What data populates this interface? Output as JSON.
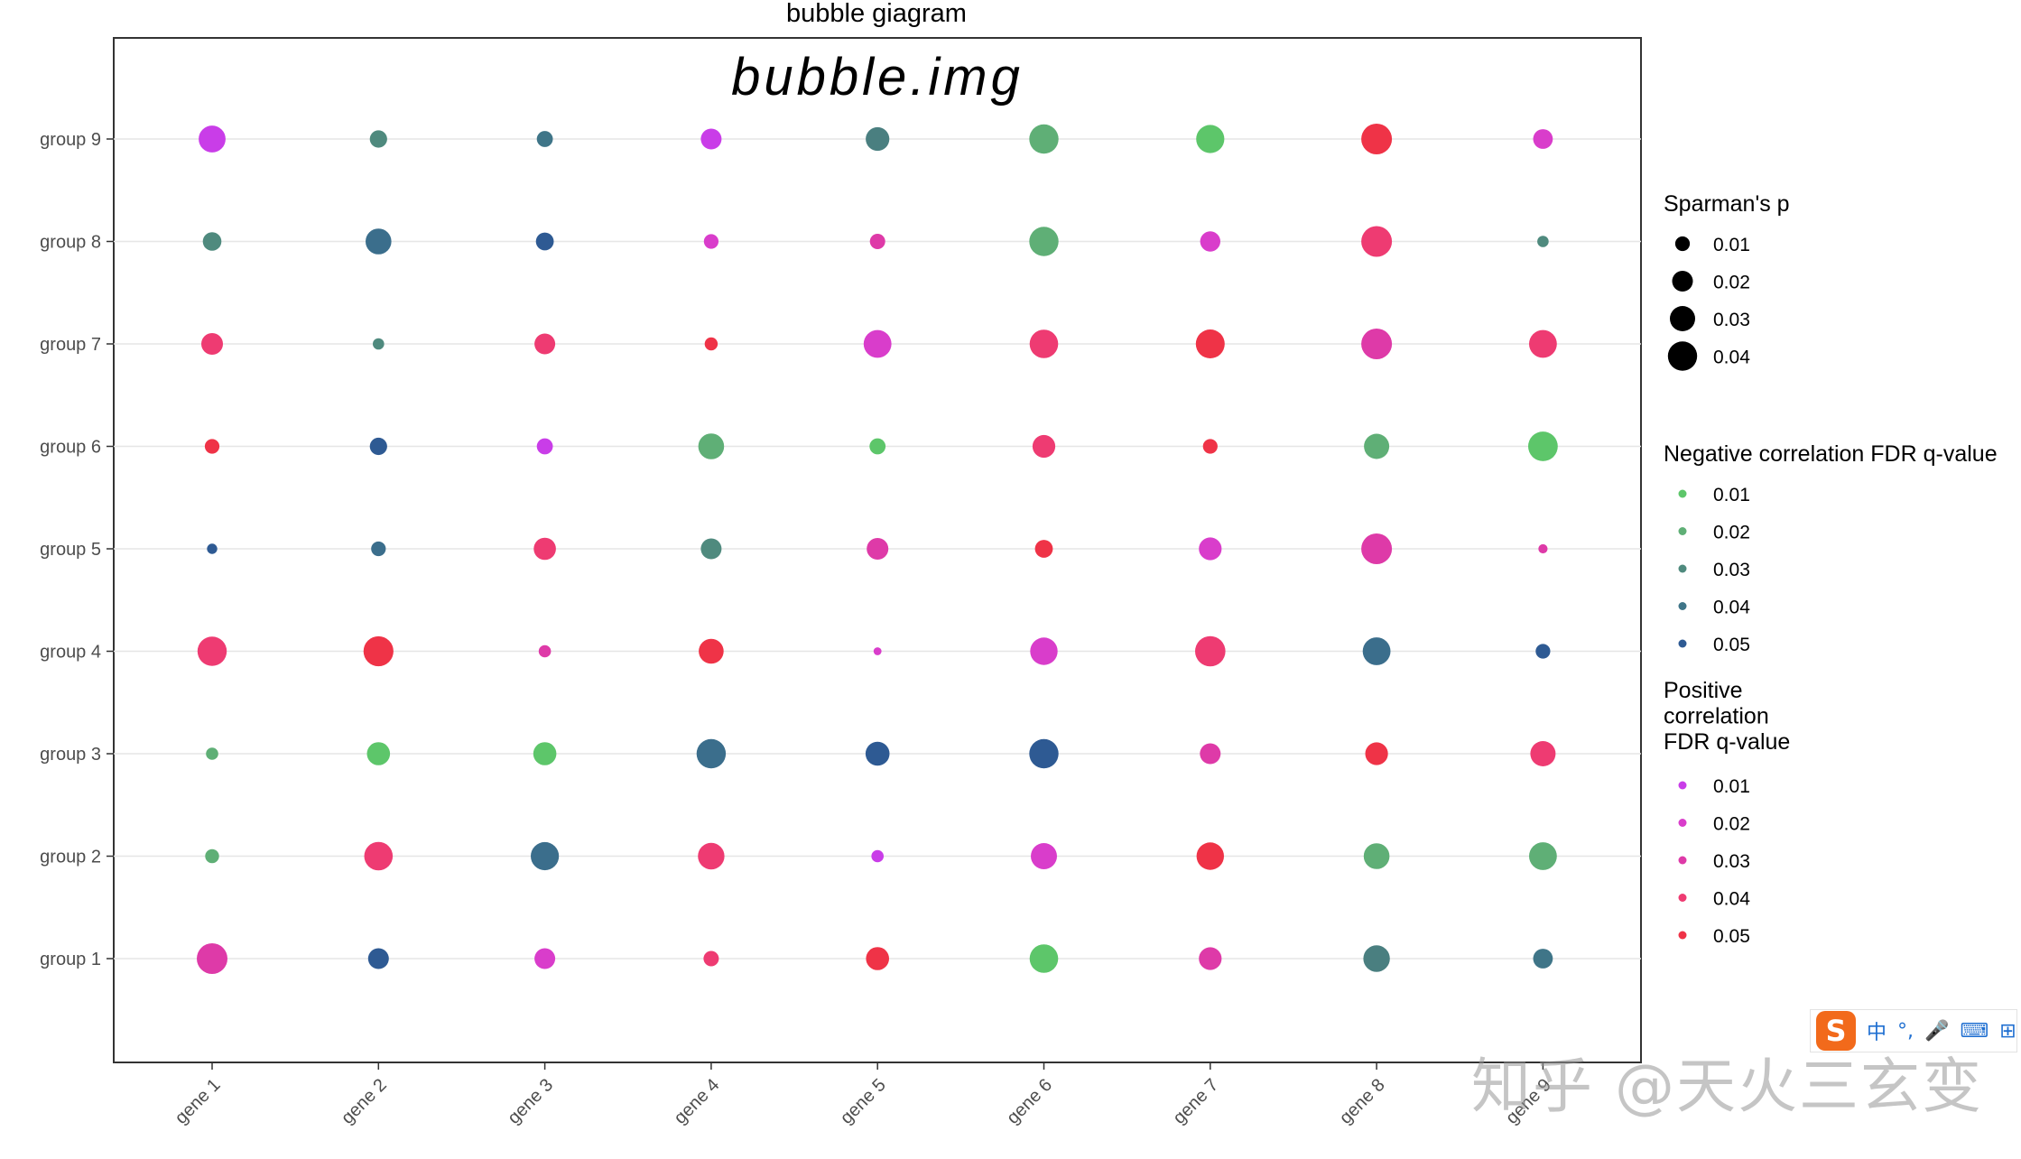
{
  "chart_data": {
    "type": "scatter",
    "title": "bubble giagram",
    "inner_title": "bubble.img",
    "categories_x": [
      "gene 1",
      "gene 2",
      "gene 3",
      "gene 4",
      "gene 5",
      "gene 6",
      "gene 7",
      "gene 8",
      "gene 9"
    ],
    "categories_y": [
      "group 1",
      "group 2",
      "group 3",
      "group 4",
      "group 5",
      "group 6",
      "group 7",
      "group 8",
      "group 9"
    ],
    "points": [
      {
        "x": "gene 1",
        "y": "group 9",
        "size": 0.034,
        "color": "#c93de8"
      },
      {
        "x": "gene 2",
        "y": "group 9",
        "size": 0.014,
        "color": "#4f8a7e"
      },
      {
        "x": "gene 3",
        "y": "group 9",
        "size": 0.012,
        "color": "#3f7588"
      },
      {
        "x": "gene 4",
        "y": "group 9",
        "size": 0.02,
        "color": "#c93de8"
      },
      {
        "x": "gene 5",
        "y": "group 9",
        "size": 0.026,
        "color": "#4a7f80"
      },
      {
        "x": "gene 6",
        "y": "group 9",
        "size": 0.04,
        "color": "#5faf76"
      },
      {
        "x": "gene 7",
        "y": "group 9",
        "size": 0.037,
        "color": "#5dc66a"
      },
      {
        "x": "gene 8",
        "y": "group 9",
        "size": 0.044,
        "color": "#ef3347"
      },
      {
        "x": "gene 9",
        "y": "group 9",
        "size": 0.018,
        "color": "#d93dcb"
      },
      {
        "x": "gene 1",
        "y": "group 8",
        "size": 0.016,
        "color": "#4f8a7e"
      },
      {
        "x": "gene 2",
        "y": "group 8",
        "size": 0.031,
        "color": "#3b6e8c"
      },
      {
        "x": "gene 3",
        "y": "group 8",
        "size": 0.015,
        "color": "#2e5a93"
      },
      {
        "x": "gene 4",
        "y": "group 8",
        "size": 0.01,
        "color": "#d93dcb"
      },
      {
        "x": "gene 5",
        "y": "group 8",
        "size": 0.011,
        "color": "#de3aa8"
      },
      {
        "x": "gene 6",
        "y": "group 8",
        "size": 0.04,
        "color": "#5faf76"
      },
      {
        "x": "gene 7",
        "y": "group 8",
        "size": 0.019,
        "color": "#d93dcb"
      },
      {
        "x": "gene 8",
        "y": "group 8",
        "size": 0.044,
        "color": "#ee3b72"
      },
      {
        "x": "gene 9",
        "y": "group 8",
        "size": 0.006,
        "color": "#4f8a7e"
      },
      {
        "x": "gene 1",
        "y": "group 7",
        "size": 0.022,
        "color": "#ee3b72"
      },
      {
        "x": "gene 2",
        "y": "group 7",
        "size": 0.006,
        "color": "#4f8a7e"
      },
      {
        "x": "gene 3",
        "y": "group 7",
        "size": 0.02,
        "color": "#ee3b72"
      },
      {
        "x": "gene 4",
        "y": "group 7",
        "size": 0.008,
        "color": "#ef3347"
      },
      {
        "x": "gene 5",
        "y": "group 7",
        "size": 0.036,
        "color": "#d93dcb"
      },
      {
        "x": "gene 6",
        "y": "group 7",
        "size": 0.038,
        "color": "#ee3b72"
      },
      {
        "x": "gene 7",
        "y": "group 7",
        "size": 0.039,
        "color": "#ef3347"
      },
      {
        "x": "gene 8",
        "y": "group 7",
        "size": 0.044,
        "color": "#de3aa8"
      },
      {
        "x": "gene 9",
        "y": "group 7",
        "size": 0.036,
        "color": "#ee3b72"
      },
      {
        "x": "gene 1",
        "y": "group 6",
        "size": 0.01,
        "color": "#ef3347"
      },
      {
        "x": "gene 2",
        "y": "group 6",
        "size": 0.014,
        "color": "#2e5a93"
      },
      {
        "x": "gene 3",
        "y": "group 6",
        "size": 0.012,
        "color": "#c93de8"
      },
      {
        "x": "gene 4",
        "y": "group 6",
        "size": 0.031,
        "color": "#5faf76"
      },
      {
        "x": "gene 5",
        "y": "group 6",
        "size": 0.012,
        "color": "#5dc66a"
      },
      {
        "x": "gene 6",
        "y": "group 6",
        "size": 0.024,
        "color": "#ee3b72"
      },
      {
        "x": "gene 7",
        "y": "group 6",
        "size": 0.01,
        "color": "#ef3347"
      },
      {
        "x": "gene 8",
        "y": "group 6",
        "size": 0.03,
        "color": "#5faf76"
      },
      {
        "x": "gene 9",
        "y": "group 6",
        "size": 0.041,
        "color": "#5dc66a"
      },
      {
        "x": "gene 1",
        "y": "group 5",
        "size": 0.005,
        "color": "#2e5a93"
      },
      {
        "x": "gene 2",
        "y": "group 5",
        "size": 0.01,
        "color": "#3b6e8c"
      },
      {
        "x": "gene 3",
        "y": "group 5",
        "size": 0.023,
        "color": "#ee3b72"
      },
      {
        "x": "gene 4",
        "y": "group 5",
        "size": 0.02,
        "color": "#4f8a7e"
      },
      {
        "x": "gene 5",
        "y": "group 5",
        "size": 0.022,
        "color": "#de3aa8"
      },
      {
        "x": "gene 6",
        "y": "group 5",
        "size": 0.015,
        "color": "#ef3347"
      },
      {
        "x": "gene 7",
        "y": "group 5",
        "size": 0.024,
        "color": "#d93dcb"
      },
      {
        "x": "gene 8",
        "y": "group 5",
        "size": 0.044,
        "color": "#de3aa8"
      },
      {
        "x": "gene 9",
        "y": "group 5",
        "size": 0.004,
        "color": "#de3aa8"
      },
      {
        "x": "gene 1",
        "y": "group 4",
        "size": 0.04,
        "color": "#ee3b72"
      },
      {
        "x": "gene 2",
        "y": "group 4",
        "size": 0.042,
        "color": "#ef3347"
      },
      {
        "x": "gene 3",
        "y": "group 4",
        "size": 0.007,
        "color": "#de3aa8"
      },
      {
        "x": "gene 4",
        "y": "group 4",
        "size": 0.029,
        "color": "#ef3347"
      },
      {
        "x": "gene 5",
        "y": "group 4",
        "size": 0.003,
        "color": "#d93dcb"
      },
      {
        "x": "gene 6",
        "y": "group 4",
        "size": 0.035,
        "color": "#d93dcb"
      },
      {
        "x": "gene 7",
        "y": "group 4",
        "size": 0.043,
        "color": "#ee3b72"
      },
      {
        "x": "gene 8",
        "y": "group 4",
        "size": 0.036,
        "color": "#3b6e8c"
      },
      {
        "x": "gene 9",
        "y": "group 4",
        "size": 0.01,
        "color": "#2e5a93"
      },
      {
        "x": "gene 1",
        "y": "group 3",
        "size": 0.007,
        "color": "#5faf76"
      },
      {
        "x": "gene 2",
        "y": "group 3",
        "size": 0.025,
        "color": "#5dc66a"
      },
      {
        "x": "gene 3",
        "y": "group 3",
        "size": 0.025,
        "color": "#5dc66a"
      },
      {
        "x": "gene 4",
        "y": "group 3",
        "size": 0.04,
        "color": "#3b6e8c"
      },
      {
        "x": "gene 5",
        "y": "group 3",
        "size": 0.027,
        "color": "#2e5a93"
      },
      {
        "x": "gene 6",
        "y": "group 3",
        "size": 0.04,
        "color": "#2e5a93"
      },
      {
        "x": "gene 7",
        "y": "group 3",
        "size": 0.02,
        "color": "#de3aa8"
      },
      {
        "x": "gene 8",
        "y": "group 3",
        "size": 0.024,
        "color": "#ef3347"
      },
      {
        "x": "gene 9",
        "y": "group 3",
        "size": 0.03,
        "color": "#ee3b72"
      },
      {
        "x": "gene 1",
        "y": "group 2",
        "size": 0.009,
        "color": "#5faf76"
      },
      {
        "x": "gene 2",
        "y": "group 2",
        "size": 0.038,
        "color": "#ee3b72"
      },
      {
        "x": "gene 3",
        "y": "group 2",
        "size": 0.037,
        "color": "#3b6e8c"
      },
      {
        "x": "gene 4",
        "y": "group 2",
        "size": 0.033,
        "color": "#ee3b72"
      },
      {
        "x": "gene 5",
        "y": "group 2",
        "size": 0.007,
        "color": "#c93de8"
      },
      {
        "x": "gene 6",
        "y": "group 2",
        "size": 0.032,
        "color": "#d93dcb"
      },
      {
        "x": "gene 7",
        "y": "group 2",
        "size": 0.035,
        "color": "#ef3347"
      },
      {
        "x": "gene 8",
        "y": "group 2",
        "size": 0.031,
        "color": "#5faf76"
      },
      {
        "x": "gene 9",
        "y": "group 2",
        "size": 0.036,
        "color": "#5faf76"
      },
      {
        "x": "gene 1",
        "y": "group 1",
        "size": 0.044,
        "color": "#de3aa8"
      },
      {
        "x": "gene 2",
        "y": "group 1",
        "size": 0.02,
        "color": "#2e5a93"
      },
      {
        "x": "gene 3",
        "y": "group 1",
        "size": 0.02,
        "color": "#d93dcb"
      },
      {
        "x": "gene 4",
        "y": "group 1",
        "size": 0.011,
        "color": "#ee3b72"
      },
      {
        "x": "gene 5",
        "y": "group 1",
        "size": 0.025,
        "color": "#ef3347"
      },
      {
        "x": "gene 6",
        "y": "group 1",
        "size": 0.038,
        "color": "#5dc66a"
      },
      {
        "x": "gene 7",
        "y": "group 1",
        "size": 0.024,
        "color": "#de3aa8"
      },
      {
        "x": "gene 8",
        "y": "group 1",
        "size": 0.033,
        "color": "#4a7f80"
      },
      {
        "x": "gene 9",
        "y": "group 1",
        "size": 0.018,
        "color": "#3f7588"
      }
    ],
    "grid": "horizontal",
    "legend_position": "right",
    "legends": [
      {
        "title": "Sparman's p",
        "kind": "size",
        "items": [
          {
            "label": "0.01",
            "size": 0.01,
            "color": "#000000"
          },
          {
            "label": "0.02",
            "size": 0.02,
            "color": "#000000"
          },
          {
            "label": "0.03",
            "size": 0.03,
            "color": "#000000"
          },
          {
            "label": "0.04",
            "size": 0.04,
            "color": "#000000"
          }
        ]
      },
      {
        "title": "Negative correlation FDR q-value",
        "kind": "color",
        "items": [
          {
            "label": "0.01",
            "color": "#5dc66a"
          },
          {
            "label": "0.02",
            "color": "#5faf76"
          },
          {
            "label": "0.03",
            "color": "#4f8a7e"
          },
          {
            "label": "0.04",
            "color": "#3f7588"
          },
          {
            "label": "0.05",
            "color": "#2e5a93"
          }
        ]
      },
      {
        "title": "Positive correlation FDR q-value",
        "title_lines": [
          "Positive",
          "correlation",
          "FDR q-value"
        ],
        "kind": "color",
        "items": [
          {
            "label": "0.01",
            "color": "#c93de8"
          },
          {
            "label": "0.02",
            "color": "#d93dcb"
          },
          {
            "label": "0.03",
            "color": "#de3aa8"
          },
          {
            "label": "0.04",
            "color": "#ee3b72"
          },
          {
            "label": "0.05",
            "color": "#ef3347"
          }
        ]
      }
    ]
  },
  "overlay": {
    "watermark": "知乎 @天火三玄变",
    "ime": {
      "logo": "S",
      "items": [
        "中",
        "°,",
        "🎤",
        "⌨",
        "⊞"
      ]
    }
  }
}
